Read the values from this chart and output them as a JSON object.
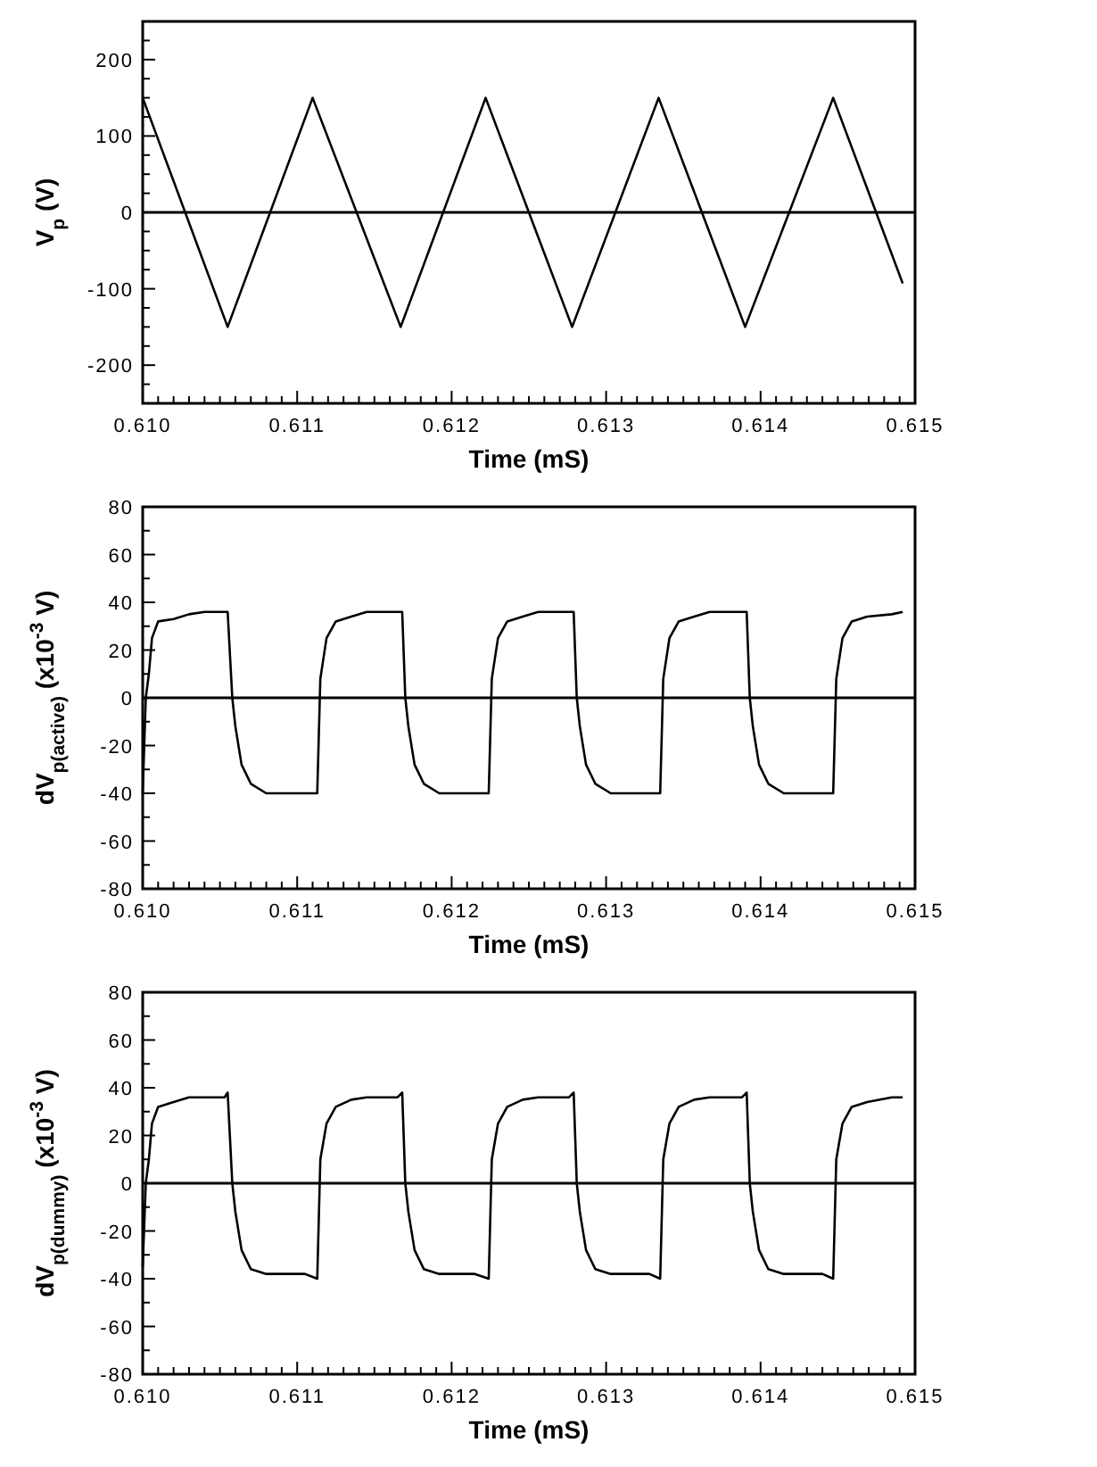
{
  "chart_data": [
    {
      "type": "line",
      "xlabel": "Time (mS)",
      "ylabel": "V$_{p}$ (V)",
      "xlim": [
        0.61,
        0.615
      ],
      "ylim": [
        -250,
        250
      ],
      "xticks": [
        {
          "value": 0.61,
          "label": "0.610"
        },
        {
          "value": 0.6101,
          "label": null
        },
        {
          "value": 0.6102,
          "label": null
        },
        {
          "value": 0.6103,
          "label": null
        },
        {
          "value": 0.6104,
          "label": null
        },
        {
          "value": 0.6105,
          "label": null
        },
        {
          "value": 0.6106,
          "label": null
        },
        {
          "value": 0.6107,
          "label": null
        },
        {
          "value": 0.6108,
          "label": null
        },
        {
          "value": 0.6109,
          "label": null
        },
        {
          "value": 0.611,
          "label": "0.611"
        },
        {
          "value": 0.6111,
          "label": null
        },
        {
          "value": 0.6112,
          "label": null
        },
        {
          "value": 0.6113,
          "label": null
        },
        {
          "value": 0.6114,
          "label": null
        },
        {
          "value": 0.6115,
          "label": null
        },
        {
          "value": 0.6116,
          "label": null
        },
        {
          "value": 0.6117,
          "label": null
        },
        {
          "value": 0.6118,
          "label": null
        },
        {
          "value": 0.6119,
          "label": null
        },
        {
          "value": 0.612,
          "label": "0.612"
        },
        {
          "value": 0.6121,
          "label": null
        },
        {
          "value": 0.6122,
          "label": null
        },
        {
          "value": 0.6123,
          "label": null
        },
        {
          "value": 0.6124,
          "label": null
        },
        {
          "value": 0.6125,
          "label": null
        },
        {
          "value": 0.6126,
          "label": null
        },
        {
          "value": 0.6127,
          "label": null
        },
        {
          "value": 0.6128,
          "label": null
        },
        {
          "value": 0.6129,
          "label": null
        },
        {
          "value": 0.613,
          "label": "0.613"
        },
        {
          "value": 0.6131,
          "label": null
        },
        {
          "value": 0.6132,
          "label": null
        },
        {
          "value": 0.6133,
          "label": null
        },
        {
          "value": 0.6134,
          "label": null
        },
        {
          "value": 0.6135,
          "label": null
        },
        {
          "value": 0.6136,
          "label": null
        },
        {
          "value": 0.6137,
          "label": null
        },
        {
          "value": 0.6138,
          "label": null
        },
        {
          "value": 0.6139,
          "label": null
        },
        {
          "value": 0.614,
          "label": "0.614"
        },
        {
          "value": 0.6141,
          "label": null
        },
        {
          "value": 0.6142,
          "label": null
        },
        {
          "value": 0.6143,
          "label": null
        },
        {
          "value": 0.6144,
          "label": null
        },
        {
          "value": 0.6145,
          "label": null
        },
        {
          "value": 0.6146,
          "label": null
        },
        {
          "value": 0.6147,
          "label": null
        },
        {
          "value": 0.6148,
          "label": null
        },
        {
          "value": 0.6149,
          "label": null
        },
        {
          "value": 0.615,
          "label": "0.615"
        }
      ],
      "yticks": [
        {
          "value": -250,
          "label": null
        },
        {
          "value": -225,
          "label": null
        },
        -200,
        {
          "value": -175,
          "label": null
        },
        {
          "value": -150,
          "label": null
        },
        {
          "value": -125,
          "label": null
        },
        -100,
        {
          "value": -75,
          "label": null
        },
        {
          "value": -50,
          "label": null
        },
        {
          "value": -25,
          "label": null
        },
        0,
        {
          "value": 25,
          "label": null
        },
        {
          "value": 50,
          "label": null
        },
        {
          "value": 75,
          "label": null
        },
        100,
        {
          "value": 125,
          "label": null
        },
        {
          "value": 150,
          "label": null
        },
        {
          "value": 175,
          "label": null
        },
        200,
        {
          "value": 225,
          "label": null
        }
      ],
      "ref_lines": [
        {
          "axis": "y",
          "value": 0,
          "color": "#000000"
        }
      ],
      "series": [
        {
          "color": "#000000",
          "line_style": "solid",
          "x": [
            0.61,
            0.61055,
            0.6111,
            0.61167,
            0.61222,
            0.61278,
            0.61334,
            0.6139,
            0.61447,
            0.61492
          ],
          "values": [
            150,
            -150,
            150,
            -150,
            150,
            -150,
            150,
            -150,
            150,
            -93
          ]
        }
      ]
    },
    {
      "type": "line",
      "xlabel": "Time (mS)",
      "ylabel": "dV$_{p(active)}$ (x10$^{-3}$ V)",
      "xlim": [
        0.61,
        0.615
      ],
      "ylim": [
        -80,
        80
      ],
      "xticks": [
        {
          "value": 0.61,
          "label": "0.610"
        },
        {
          "value": 0.6101,
          "label": null
        },
        {
          "value": 0.6102,
          "label": null
        },
        {
          "value": 0.6103,
          "label": null
        },
        {
          "value": 0.6104,
          "label": null
        },
        {
          "value": 0.6105,
          "label": null
        },
        {
          "value": 0.6106,
          "label": null
        },
        {
          "value": 0.6107,
          "label": null
        },
        {
          "value": 0.6108,
          "label": null
        },
        {
          "value": 0.6109,
          "label": null
        },
        {
          "value": 0.611,
          "label": "0.611"
        },
        {
          "value": 0.6111,
          "label": null
        },
        {
          "value": 0.6112,
          "label": null
        },
        {
          "value": 0.6113,
          "label": null
        },
        {
          "value": 0.6114,
          "label": null
        },
        {
          "value": 0.6115,
          "label": null
        },
        {
          "value": 0.6116,
          "label": null
        },
        {
          "value": 0.6117,
          "label": null
        },
        {
          "value": 0.6118,
          "label": null
        },
        {
          "value": 0.6119,
          "label": null
        },
        {
          "value": 0.612,
          "label": "0.612"
        },
        {
          "value": 0.6121,
          "label": null
        },
        {
          "value": 0.6122,
          "label": null
        },
        {
          "value": 0.6123,
          "label": null
        },
        {
          "value": 0.6124,
          "label": null
        },
        {
          "value": 0.6125,
          "label": null
        },
        {
          "value": 0.6126,
          "label": null
        },
        {
          "value": 0.6127,
          "label": null
        },
        {
          "value": 0.6128,
          "label": null
        },
        {
          "value": 0.6129,
          "label": null
        },
        {
          "value": 0.613,
          "label": "0.613"
        },
        {
          "value": 0.6131,
          "label": null
        },
        {
          "value": 0.6132,
          "label": null
        },
        {
          "value": 0.6133,
          "label": null
        },
        {
          "value": 0.6134,
          "label": null
        },
        {
          "value": 0.6135,
          "label": null
        },
        {
          "value": 0.6136,
          "label": null
        },
        {
          "value": 0.6137,
          "label": null
        },
        {
          "value": 0.6138,
          "label": null
        },
        {
          "value": 0.6139,
          "label": null
        },
        {
          "value": 0.614,
          "label": "0.614"
        },
        {
          "value": 0.6141,
          "label": null
        },
        {
          "value": 0.6142,
          "label": null
        },
        {
          "value": 0.6143,
          "label": null
        },
        {
          "value": 0.6144,
          "label": null
        },
        {
          "value": 0.6145,
          "label": null
        },
        {
          "value": 0.6146,
          "label": null
        },
        {
          "value": 0.6147,
          "label": null
        },
        {
          "value": 0.6148,
          "label": null
        },
        {
          "value": 0.6149,
          "label": null
        },
        {
          "value": 0.615,
          "label": "0.615"
        }
      ],
      "yticks": [
        -80,
        {
          "value": -70,
          "label": null
        },
        -60,
        {
          "value": -50,
          "label": null
        },
        -40,
        {
          "value": -30,
          "label": null
        },
        -20,
        {
          "value": -10,
          "label": null
        },
        0,
        {
          "value": 10,
          "label": null
        },
        20,
        {
          "value": 30,
          "label": null
        },
        40,
        {
          "value": 50,
          "label": null
        },
        60,
        {
          "value": 70,
          "label": null
        },
        80
      ],
      "ref_lines": [
        {
          "axis": "y",
          "value": 0,
          "color": "#000000"
        }
      ],
      "series": [
        {
          "color": "#000000",
          "line_style": "solid",
          "x": [
            0.61,
            0.61002,
            0.61004,
            0.61006,
            0.6101,
            0.6102,
            0.6103,
            0.6104,
            0.61055,
            0.61058,
            0.6106,
            0.61064,
            0.6107,
            0.6108,
            0.61113,
            0.61115,
            0.61119,
            0.61125,
            0.61135,
            0.61145,
            0.61168,
            0.6117,
            0.61172,
            0.61176,
            0.61182,
            0.61192,
            0.61224,
            0.61226,
            0.6123,
            0.61236,
            0.61246,
            0.61256,
            0.61279,
            0.61281,
            0.61283,
            0.61287,
            0.61293,
            0.61303,
            0.61335,
            0.61337,
            0.61341,
            0.61347,
            0.61357,
            0.61367,
            0.61391,
            0.61393,
            0.61395,
            0.61399,
            0.61405,
            0.61415,
            0.61447,
            0.61449,
            0.61453,
            0.61459,
            0.61469,
            0.61485,
            0.61492
          ],
          "values": [
            -40,
            0,
            10,
            25,
            32,
            33,
            35,
            36,
            36,
            0,
            -12,
            -28,
            -36,
            -40,
            -40,
            8,
            25,
            32,
            34,
            36,
            36,
            0,
            -12,
            -28,
            -36,
            -40,
            -40,
            8,
            25,
            32,
            34,
            36,
            36,
            0,
            -12,
            -28,
            -36,
            -40,
            -40,
            8,
            25,
            32,
            34,
            36,
            36,
            0,
            -12,
            -28,
            -36,
            -40,
            -40,
            8,
            25,
            32,
            34,
            35,
            36
          ]
        }
      ]
    },
    {
      "type": "line",
      "xlabel": "Time (mS)",
      "ylabel": "dV$_{p(dummy)}$ (x10$^{-3}$ V)",
      "xlim": [
        0.61,
        0.615
      ],
      "ylim": [
        -80,
        80
      ],
      "xticks": [
        {
          "value": 0.61,
          "label": "0.610"
        },
        {
          "value": 0.6101,
          "label": null
        },
        {
          "value": 0.6102,
          "label": null
        },
        {
          "value": 0.6103,
          "label": null
        },
        {
          "value": 0.6104,
          "label": null
        },
        {
          "value": 0.6105,
          "label": null
        },
        {
          "value": 0.6106,
          "label": null
        },
        {
          "value": 0.6107,
          "label": null
        },
        {
          "value": 0.6108,
          "label": null
        },
        {
          "value": 0.6109,
          "label": null
        },
        {
          "value": 0.611,
          "label": "0.611"
        },
        {
          "value": 0.6111,
          "label": null
        },
        {
          "value": 0.6112,
          "label": null
        },
        {
          "value": 0.6113,
          "label": null
        },
        {
          "value": 0.6114,
          "label": null
        },
        {
          "value": 0.6115,
          "label": null
        },
        {
          "value": 0.6116,
          "label": null
        },
        {
          "value": 0.6117,
          "label": null
        },
        {
          "value": 0.6118,
          "label": null
        },
        {
          "value": 0.6119,
          "label": null
        },
        {
          "value": 0.612,
          "label": "0.612"
        },
        {
          "value": 0.6121,
          "label": null
        },
        {
          "value": 0.6122,
          "label": null
        },
        {
          "value": 0.6123,
          "label": null
        },
        {
          "value": 0.6124,
          "label": null
        },
        {
          "value": 0.6125,
          "label": null
        },
        {
          "value": 0.6126,
          "label": null
        },
        {
          "value": 0.6127,
          "label": null
        },
        {
          "value": 0.6128,
          "label": null
        },
        {
          "value": 0.6129,
          "label": null
        },
        {
          "value": 0.613,
          "label": "0.613"
        },
        {
          "value": 0.6131,
          "label": null
        },
        {
          "value": 0.6132,
          "label": null
        },
        {
          "value": 0.6133,
          "label": null
        },
        {
          "value": 0.6134,
          "label": null
        },
        {
          "value": 0.6135,
          "label": null
        },
        {
          "value": 0.6136,
          "label": null
        },
        {
          "value": 0.6137,
          "label": null
        },
        {
          "value": 0.6138,
          "label": null
        },
        {
          "value": 0.6139,
          "label": null
        },
        {
          "value": 0.614,
          "label": "0.614"
        },
        {
          "value": 0.6141,
          "label": null
        },
        {
          "value": 0.6142,
          "label": null
        },
        {
          "value": 0.6143,
          "label": null
        },
        {
          "value": 0.6144,
          "label": null
        },
        {
          "value": 0.6145,
          "label": null
        },
        {
          "value": 0.6146,
          "label": null
        },
        {
          "value": 0.6147,
          "label": null
        },
        {
          "value": 0.6148,
          "label": null
        },
        {
          "value": 0.6149,
          "label": null
        },
        {
          "value": 0.615,
          "label": "0.615"
        }
      ],
      "yticks": [
        -80,
        {
          "value": -70,
          "label": null
        },
        -60,
        {
          "value": -50,
          "label": null
        },
        -40,
        {
          "value": -30,
          "label": null
        },
        -20,
        {
          "value": -10,
          "label": null
        },
        0,
        {
          "value": 10,
          "label": null
        },
        20,
        {
          "value": 30,
          "label": null
        },
        40,
        {
          "value": 50,
          "label": null
        },
        60,
        {
          "value": 70,
          "label": null
        },
        80
      ],
      "ref_lines": [
        {
          "axis": "y",
          "value": 0,
          "color": "#000000"
        }
      ],
      "series": [
        {
          "color": "#000000",
          "line_style": "solid",
          "x": [
            0.61,
            0.61002,
            0.61004,
            0.61006,
            0.6101,
            0.6102,
            0.6103,
            0.6104,
            0.61053,
            0.61055,
            0.61058,
            0.6106,
            0.61064,
            0.6107,
            0.6108,
            0.61105,
            0.61113,
            0.61115,
            0.61119,
            0.61125,
            0.61135,
            0.61145,
            0.61165,
            0.61168,
            0.6117,
            0.61172,
            0.61176,
            0.61182,
            0.61192,
            0.61215,
            0.61224,
            0.61226,
            0.6123,
            0.61236,
            0.61246,
            0.61256,
            0.61276,
            0.61279,
            0.61281,
            0.61283,
            0.61287,
            0.61293,
            0.61303,
            0.61328,
            0.61335,
            0.61337,
            0.61341,
            0.61347,
            0.61357,
            0.61367,
            0.61388,
            0.61391,
            0.61393,
            0.61395,
            0.61399,
            0.61405,
            0.61415,
            0.6144,
            0.61447,
            0.61449,
            0.61453,
            0.61459,
            0.61469,
            0.61485,
            0.61492
          ],
          "values": [
            -35,
            0,
            10,
            25,
            32,
            34,
            36,
            36,
            36,
            38,
            0,
            -12,
            -28,
            -36,
            -38,
            -38,
            -40,
            10,
            25,
            32,
            35,
            36,
            36,
            38,
            0,
            -12,
            -28,
            -36,
            -38,
            -38,
            -40,
            10,
            25,
            32,
            35,
            36,
            36,
            38,
            0,
            -12,
            -28,
            -36,
            -38,
            -38,
            -40,
            10,
            25,
            32,
            35,
            36,
            36,
            38,
            0,
            -12,
            -28,
            -36,
            -38,
            -38,
            -40,
            10,
            25,
            32,
            34,
            36,
            36
          ]
        }
      ]
    }
  ]
}
